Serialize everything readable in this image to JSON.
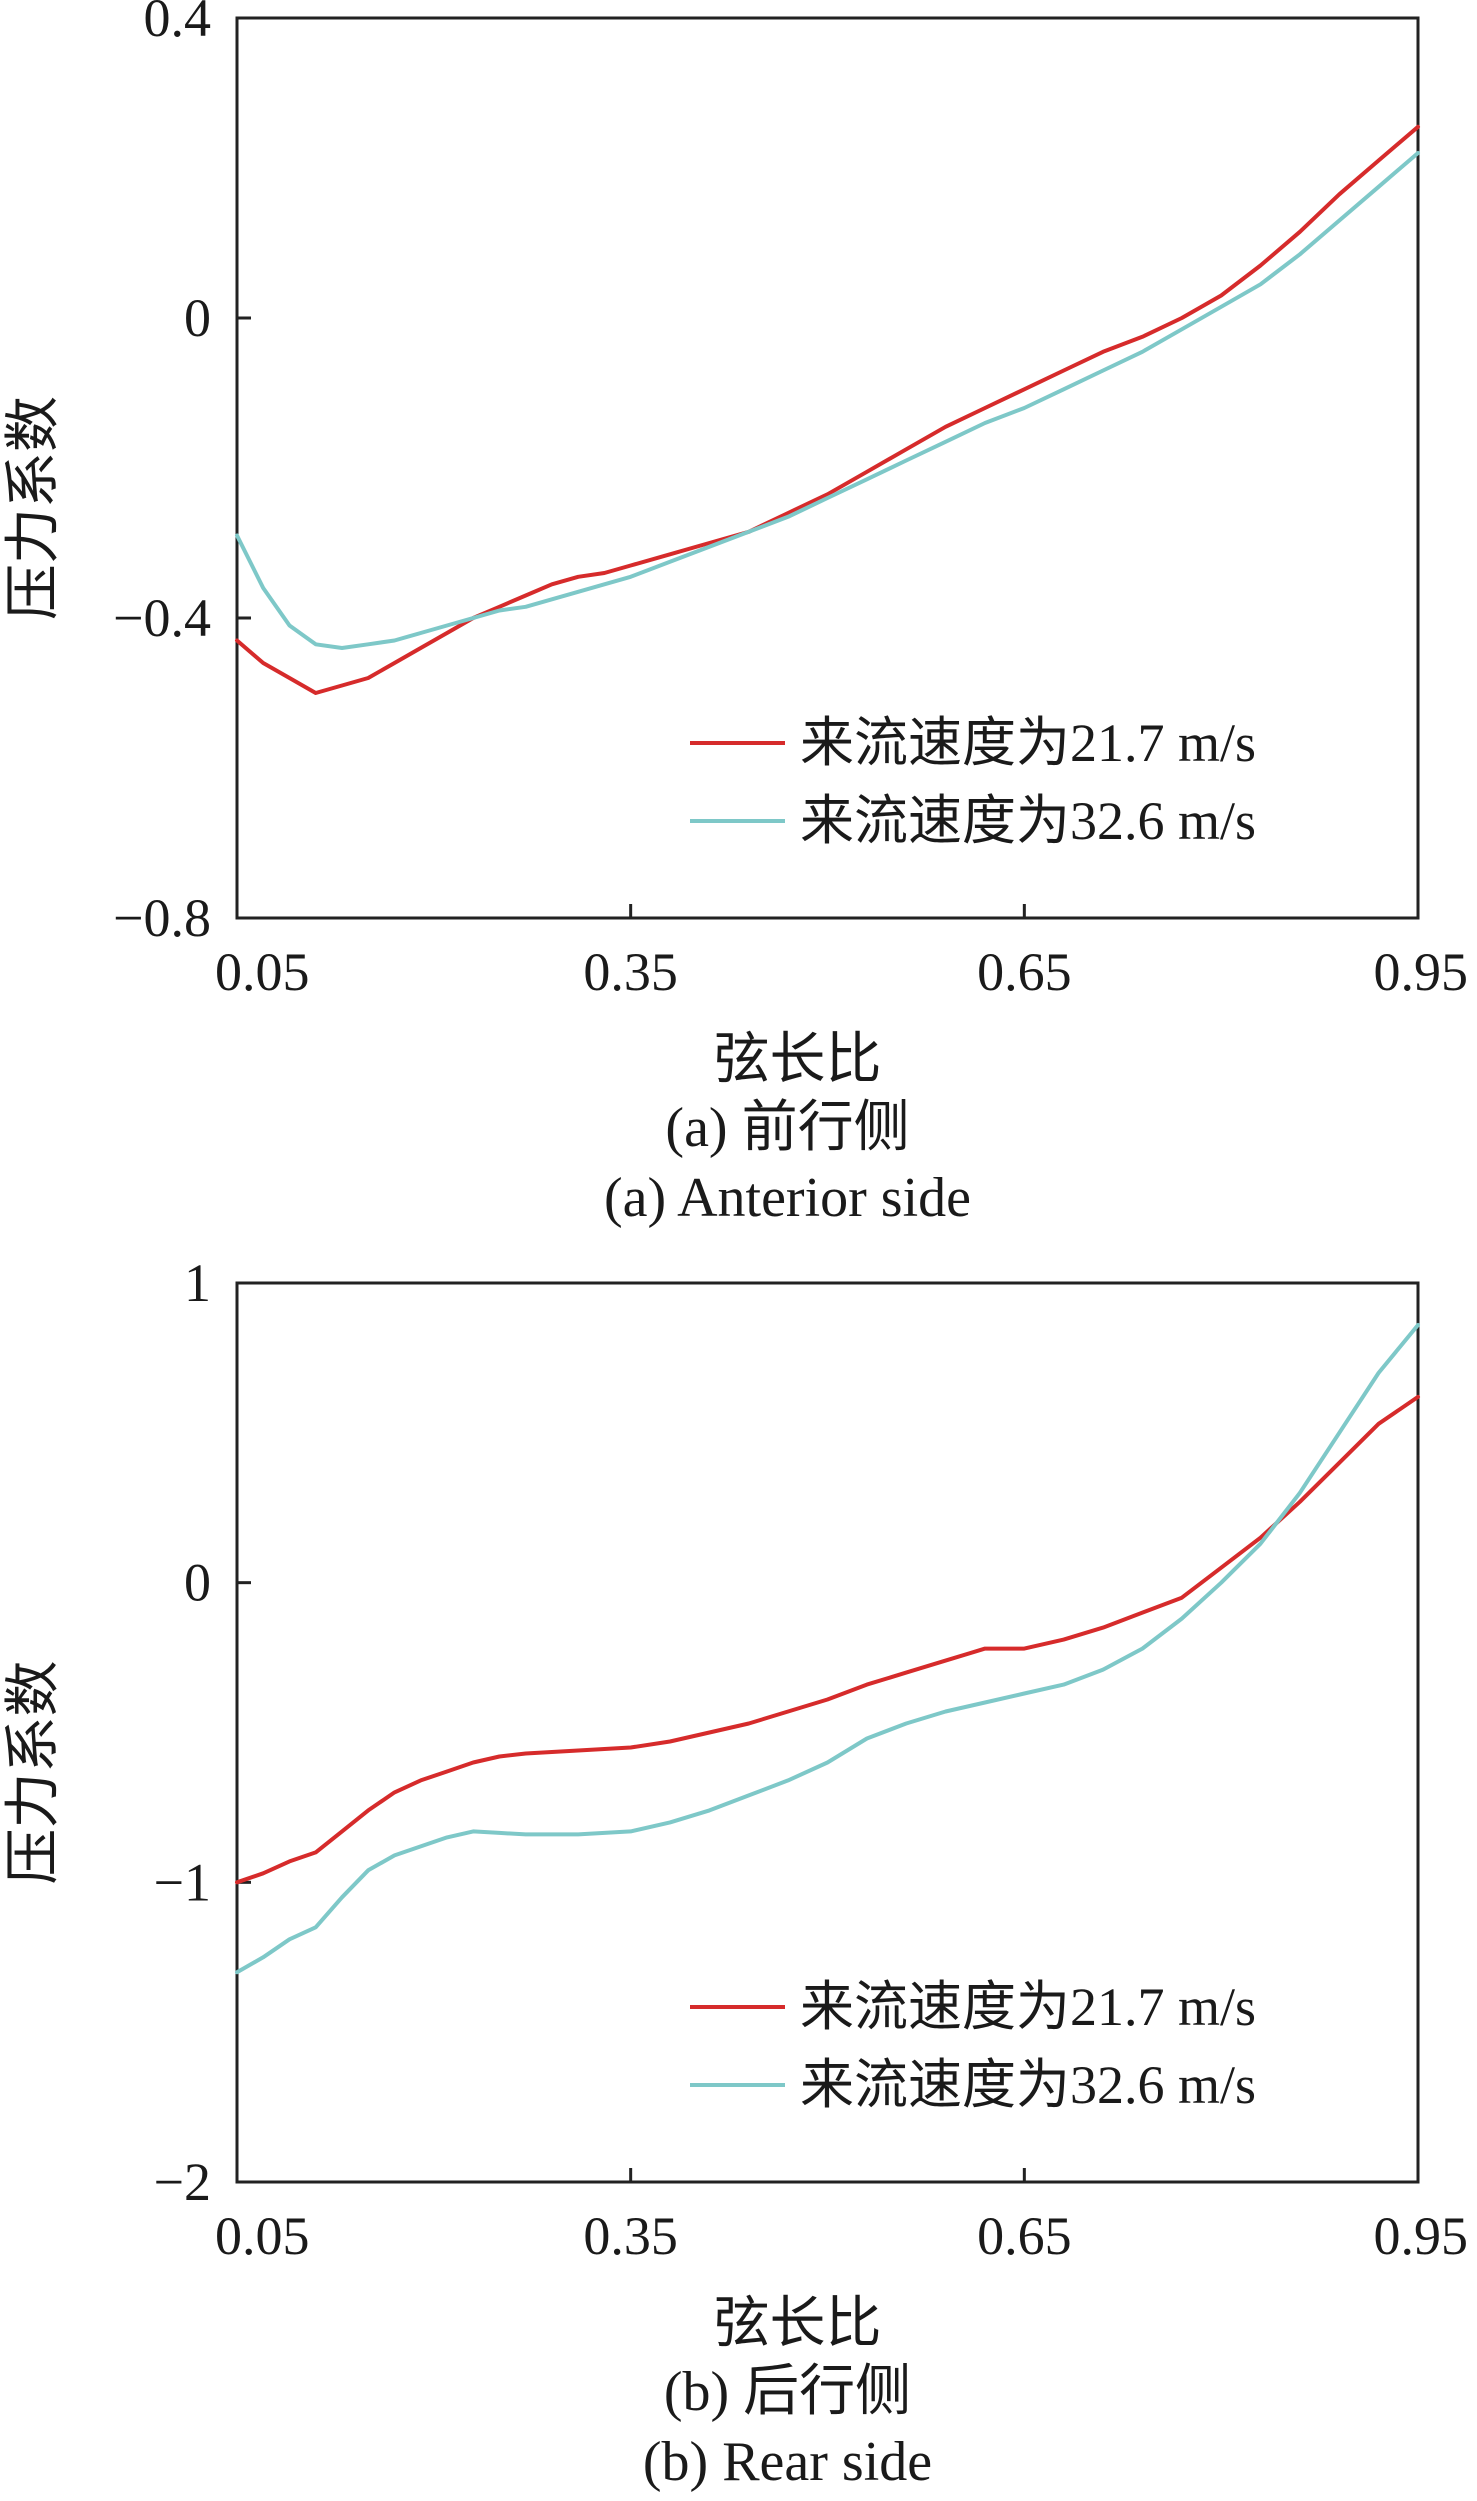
{
  "chart_data": [
    {
      "type": "line",
      "caption_cn": "(a)  前行侧",
      "caption_en": "(a)  Anterior side",
      "xlabel": "弦长比",
      "ylabel": "压力系数",
      "xlim": [
        0.05,
        0.95
      ],
      "ylim": [
        -0.8,
        0.4
      ],
      "xticks": [
        0.05,
        0.35,
        0.65,
        0.95
      ],
      "xtick_labels": [
        "0.05",
        "0.35",
        "0.65",
        "0.95"
      ],
      "yticks": [
        0.4,
        0,
        -0.4,
        -0.8
      ],
      "ytick_labels": [
        "0.4",
        "0",
        "−0.4",
        "−0.8"
      ],
      "grid": false,
      "legend_position": "bottom-right",
      "series": [
        {
          "name": "来流速度为21.7 m/s",
          "color": "#d62b2b",
          "x": [
            0.05,
            0.07,
            0.09,
            0.11,
            0.13,
            0.15,
            0.17,
            0.19,
            0.21,
            0.23,
            0.25,
            0.27,
            0.29,
            0.31,
            0.33,
            0.35,
            0.38,
            0.41,
            0.44,
            0.47,
            0.5,
            0.53,
            0.56,
            0.59,
            0.62,
            0.65,
            0.68,
            0.71,
            0.74,
            0.77,
            0.8,
            0.83,
            0.86,
            0.89,
            0.92,
            0.95
          ],
          "values": [
            -0.43,
            -0.46,
            -0.48,
            -0.5,
            -0.49,
            -0.48,
            -0.46,
            -0.44,
            -0.42,
            -0.4,
            -0.385,
            -0.37,
            -0.355,
            -0.345,
            -0.34,
            -0.33,
            -0.315,
            -0.3,
            -0.285,
            -0.26,
            -0.235,
            -0.205,
            -0.175,
            -0.145,
            -0.12,
            -0.095,
            -0.07,
            -0.045,
            -0.025,
            0.0,
            0.03,
            0.07,
            0.115,
            0.165,
            0.21,
            0.255
          ]
        },
        {
          "name": "来流速度为32.6 m/s",
          "color": "#7ec8c8",
          "x": [
            0.05,
            0.07,
            0.09,
            0.11,
            0.13,
            0.15,
            0.17,
            0.19,
            0.21,
            0.23,
            0.25,
            0.27,
            0.29,
            0.31,
            0.33,
            0.35,
            0.38,
            0.41,
            0.44,
            0.47,
            0.5,
            0.53,
            0.56,
            0.59,
            0.62,
            0.65,
            0.68,
            0.71,
            0.74,
            0.77,
            0.8,
            0.83,
            0.86,
            0.89,
            0.92,
            0.95
          ],
          "values": [
            -0.29,
            -0.36,
            -0.41,
            -0.435,
            -0.44,
            -0.435,
            -0.43,
            -0.42,
            -0.41,
            -0.4,
            -0.39,
            -0.385,
            -0.375,
            -0.365,
            -0.355,
            -0.345,
            -0.325,
            -0.305,
            -0.285,
            -0.265,
            -0.24,
            -0.215,
            -0.19,
            -0.165,
            -0.14,
            -0.12,
            -0.095,
            -0.07,
            -0.045,
            -0.015,
            0.015,
            0.045,
            0.085,
            0.13,
            0.175,
            0.22
          ]
        }
      ]
    },
    {
      "type": "line",
      "caption_cn": "(b)  后行侧",
      "caption_en": "(b)  Rear side",
      "xlabel": "弦长比",
      "ylabel": "压力系数",
      "xlim": [
        0.05,
        0.95
      ],
      "ylim": [
        -2,
        1
      ],
      "xticks": [
        0.05,
        0.35,
        0.65,
        0.95
      ],
      "xtick_labels": [
        "0.05",
        "0.35",
        "0.65",
        "0.95"
      ],
      "yticks": [
        1,
        0,
        -1,
        -2
      ],
      "ytick_labels": [
        "1",
        "0",
        "−1",
        "−2"
      ],
      "grid": false,
      "legend_position": "bottom-right",
      "series": [
        {
          "name": "来流速度为21.7 m/s",
          "color": "#d62b2b",
          "x": [
            0.05,
            0.07,
            0.09,
            0.11,
            0.13,
            0.15,
            0.17,
            0.19,
            0.21,
            0.23,
            0.25,
            0.27,
            0.29,
            0.31,
            0.33,
            0.35,
            0.38,
            0.41,
            0.44,
            0.47,
            0.5,
            0.53,
            0.56,
            0.59,
            0.62,
            0.65,
            0.68,
            0.71,
            0.74,
            0.77,
            0.8,
            0.83,
            0.86,
            0.89,
            0.92,
            0.95
          ],
          "values": [
            -1.0,
            -0.97,
            -0.93,
            -0.9,
            -0.83,
            -0.76,
            -0.7,
            -0.66,
            -0.63,
            -0.6,
            -0.58,
            -0.57,
            -0.565,
            -0.56,
            -0.555,
            -0.55,
            -0.53,
            -0.5,
            -0.47,
            -0.43,
            -0.39,
            -0.34,
            -0.3,
            -0.26,
            -0.22,
            -0.22,
            -0.19,
            -0.15,
            -0.1,
            -0.05,
            0.05,
            0.15,
            0.27,
            0.4,
            0.53,
            0.62
          ]
        },
        {
          "name": "来流速度为32.6 m/s",
          "color": "#7ec8c8",
          "x": [
            0.05,
            0.07,
            0.09,
            0.11,
            0.13,
            0.15,
            0.17,
            0.19,
            0.21,
            0.23,
            0.25,
            0.27,
            0.29,
            0.31,
            0.33,
            0.35,
            0.38,
            0.41,
            0.44,
            0.47,
            0.5,
            0.53,
            0.56,
            0.59,
            0.62,
            0.65,
            0.68,
            0.71,
            0.74,
            0.77,
            0.8,
            0.83,
            0.86,
            0.89,
            0.92,
            0.95
          ],
          "values": [
            -1.3,
            -1.25,
            -1.19,
            -1.15,
            -1.05,
            -0.96,
            -0.91,
            -0.88,
            -0.85,
            -0.83,
            -0.835,
            -0.84,
            -0.84,
            -0.84,
            -0.835,
            -0.83,
            -0.8,
            -0.76,
            -0.71,
            -0.66,
            -0.6,
            -0.52,
            -0.47,
            -0.43,
            -0.4,
            -0.37,
            -0.34,
            -0.29,
            -0.22,
            -0.12,
            0.0,
            0.13,
            0.3,
            0.5,
            0.7,
            0.86
          ]
        }
      ]
    }
  ]
}
